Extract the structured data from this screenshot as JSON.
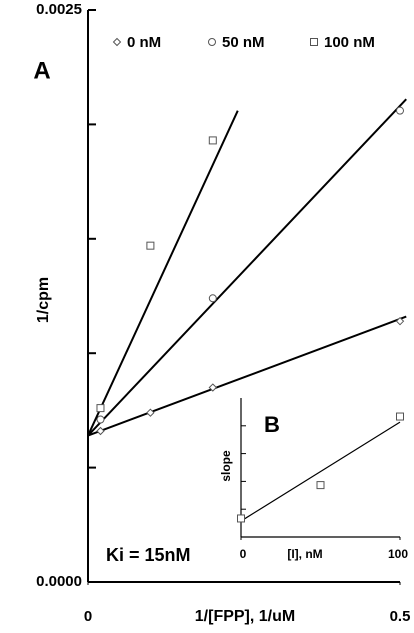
{
  "chart_data": [
    {
      "type": "scatter",
      "ylabel": "1/cpm",
      "xlabel": "1/[FPP], 1/uM",
      "annotations": [
        "A",
        "Ki = 15nM"
      ],
      "xlim": [
        0,
        0.5
      ],
      "ylim": [
        0,
        0.0025
      ],
      "xticks": [
        0,
        0.5
      ],
      "yticks": [
        {
          "value": 0,
          "label": "0.0000"
        },
        {
          "value": 0.0025,
          "label": "0.0025"
        }
      ],
      "yminor": [
        0.0005,
        0.001,
        0.0015,
        0.002
      ],
      "series": [
        {
          "name": "0 nM",
          "marker": "diamond",
          "color": "#555555",
          "x": [
            0.02,
            0.1,
            0.2,
            0.5
          ],
          "values": [
            0.00066,
            0.00074,
            0.00085,
            0.00114
          ],
          "fit": {
            "x": [
              0,
              0.51
            ],
            "y": [
              0.00064,
              0.00116
            ]
          }
        },
        {
          "name": "50 nM",
          "marker": "circle",
          "color": "#555555",
          "x": [
            0.02,
            0.2,
            0.5
          ],
          "values": [
            0.00071,
            0.00124,
            0.00206
          ],
          "fit": {
            "x": [
              0,
              0.51
            ],
            "y": [
              0.00064,
              0.00211
            ]
          }
        },
        {
          "name": "100 nM",
          "marker": "square",
          "color": "#555555",
          "x": [
            0.02,
            0.1,
            0.2
          ],
          "values": [
            0.00076,
            0.00147,
            0.00193
          ],
          "fit": {
            "x": [
              0,
              0.24
            ],
            "y": [
              0.00064,
              0.00206
            ]
          }
        }
      ]
    },
    {
      "type": "scatter",
      "ylabel": "slope",
      "xlabel": "[I], nM",
      "annotations": [
        "B"
      ],
      "xlim": [
        0,
        100
      ],
      "ylim": [
        0,
        0.0075
      ],
      "xticks": [
        0,
        100
      ],
      "yminor": [
        0.0015,
        0.003,
        0.0045,
        0.006
      ],
      "series": [
        {
          "marker": "square",
          "color": "#555555",
          "x": [
            0,
            50,
            100
          ],
          "values": [
            0.001,
            0.0028,
            0.0065
          ],
          "fit": {
            "x": [
              0,
              100
            ],
            "y": [
              0.00086,
              0.0062
            ]
          }
        }
      ]
    }
  ]
}
